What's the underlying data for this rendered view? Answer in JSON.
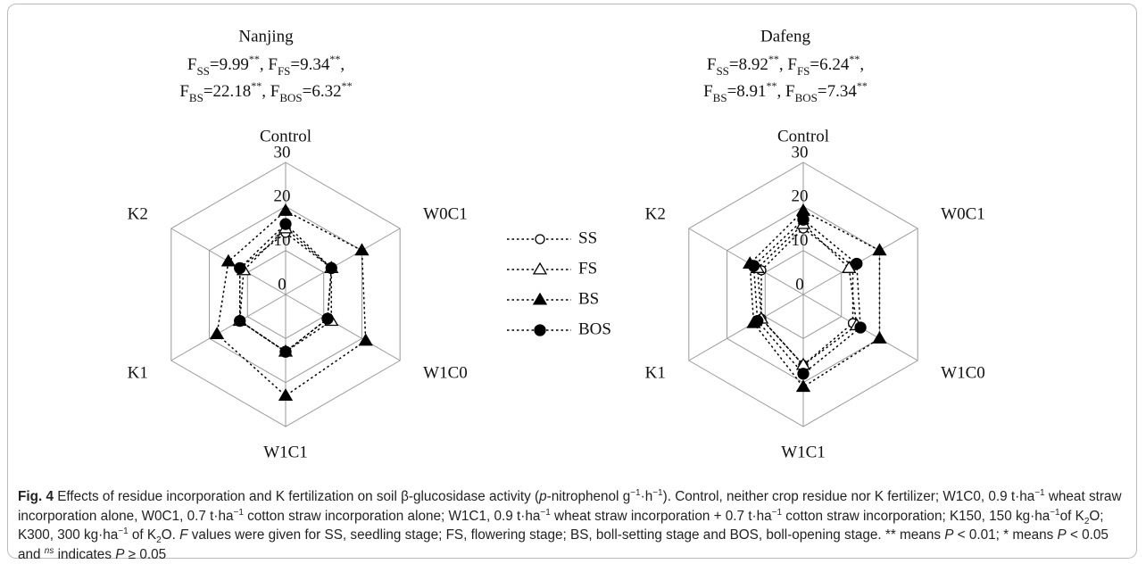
{
  "chart_data": [
    {
      "type": "radar",
      "title": "Nanjing",
      "stats": [
        [
          {
            "main": "F",
            "sub": "SS",
            "text": "=9.99",
            "sup": "**",
            "sep": ","
          },
          {
            "main": "F",
            "sub": "FS",
            "text": "=9.34",
            "sup": "**",
            "sep": ","
          }
        ],
        [
          {
            "main": "F",
            "sub": "BS",
            "text": "=22.18",
            "sup": "**",
            "sep": ","
          },
          {
            "main": "F",
            "sub": "BOS",
            "text": "=6.32",
            "sup": "**"
          }
        ]
      ],
      "categories": [
        "Control",
        "W0C1",
        "W1C0",
        "W1C1",
        "K1",
        "K2"
      ],
      "rlim": [
        0,
        30
      ],
      "rticks": [
        0,
        10,
        20,
        30
      ],
      "grid": true,
      "series": [
        {
          "name": "SS",
          "color": "#000000",
          "marker": "circle-open",
          "values": [
            14,
            12,
            11,
            13,
            12,
            12
          ]
        },
        {
          "name": "FS",
          "color": "#000000",
          "marker": "triangle-open",
          "values": [
            15,
            12,
            12,
            13,
            12,
            11
          ]
        },
        {
          "name": "BS",
          "color": "#000000",
          "marker": "triangle-filled",
          "values": [
            19,
            20,
            21,
            23,
            18,
            15
          ]
        },
        {
          "name": "BOS",
          "color": "#000000",
          "marker": "circle-filled",
          "values": [
            16,
            12,
            11,
            13,
            12,
            12
          ]
        }
      ]
    },
    {
      "type": "radar",
      "title": "Dafeng",
      "stats": [
        [
          {
            "main": "F",
            "sub": "SS",
            "text": "=8.92",
            "sup": "**",
            "sep": ","
          },
          {
            "main": "F",
            "sub": "FS",
            "text": "=6.24",
            "sup": "**",
            "sep": ","
          }
        ],
        [
          {
            "main": "F",
            "sub": "BS",
            "text": "=8.91",
            "sup": "**",
            "sep": ","
          },
          {
            "main": "F",
            "sub": "BOS",
            "text": "=7.34",
            "sup": "**"
          }
        ]
      ],
      "categories": [
        "Control",
        "W0C1",
        "W1C0",
        "W1C1",
        "K1",
        "K2"
      ],
      "rlim": [
        0,
        30
      ],
      "rticks": [
        0,
        10,
        20,
        30
      ],
      "grid": true,
      "series": [
        {
          "name": "SS",
          "color": "#000000",
          "marker": "circle-open",
          "values": [
            15,
            13,
            13,
            16,
            11,
            11
          ]
        },
        {
          "name": "FS",
          "color": "#000000",
          "marker": "triangle-open",
          "values": [
            16,
            12,
            14,
            16,
            11,
            12
          ]
        },
        {
          "name": "BS",
          "color": "#000000",
          "marker": "triangle-filled",
          "values": [
            19,
            20,
            20,
            21,
            13,
            14
          ]
        },
        {
          "name": "BOS",
          "color": "#000000",
          "marker": "circle-filled",
          "values": [
            17,
            14,
            15,
            18,
            12,
            13
          ]
        }
      ]
    }
  ],
  "legend_position": "center",
  "caption": [
    {
      "text": "Fig. 4",
      "style": "bold"
    },
    {
      "text": " Effects of residue incorporation and K fertilization on soil β-glucosidase activity ("
    },
    {
      "text": "p",
      "style": "italic"
    },
    {
      "text": "-nitrophenol g"
    },
    {
      "text": "−1",
      "style": "sup"
    },
    {
      "text": "·h"
    },
    {
      "text": "−1",
      "style": "sup"
    },
    {
      "text": "). Control, neither crop residue nor K fertilizer; W1C0, 0.9 t·ha"
    },
    {
      "text": "−1",
      "style": "sup"
    },
    {
      "text": " wheat straw incorporation alone, W0C1, 0.7 t·ha"
    },
    {
      "text": "−1",
      "style": "sup"
    },
    {
      "text": " cotton straw incorporation alone; W1C1, 0.9 t·ha"
    },
    {
      "text": "−1",
      "style": "sup"
    },
    {
      "text": " wheat straw incorporation + 0.7 t·ha"
    },
    {
      "text": "−1",
      "style": "sup"
    },
    {
      "text": " cotton straw incorporation; K150, 150 kg·ha"
    },
    {
      "text": "−1",
      "style": "sup"
    },
    {
      "text": "of K"
    },
    {
      "text": "2",
      "style": "sub"
    },
    {
      "text": "O; K300, 300 kg·ha"
    },
    {
      "text": "−1",
      "style": "sup"
    },
    {
      "text": " of K"
    },
    {
      "text": "2",
      "style": "sub"
    },
    {
      "text": "O. "
    },
    {
      "text": "F",
      "style": "italic"
    },
    {
      "text": " values were given for SS, seedling stage; FS, flowering stage; BS, boll-setting stage and BOS, boll-opening stage. ** means "
    },
    {
      "text": "P",
      "style": "italic"
    },
    {
      "text": " < 0.01; * means "
    },
    {
      "text": "P",
      "style": "italic"
    },
    {
      "text": " < 0.05 and "
    },
    {
      "text": "ns",
      "style": "sup-italic"
    },
    {
      "text": " indicates "
    },
    {
      "text": "P",
      "style": "italic"
    },
    {
      "text": " ≥ 0.05"
    }
  ]
}
